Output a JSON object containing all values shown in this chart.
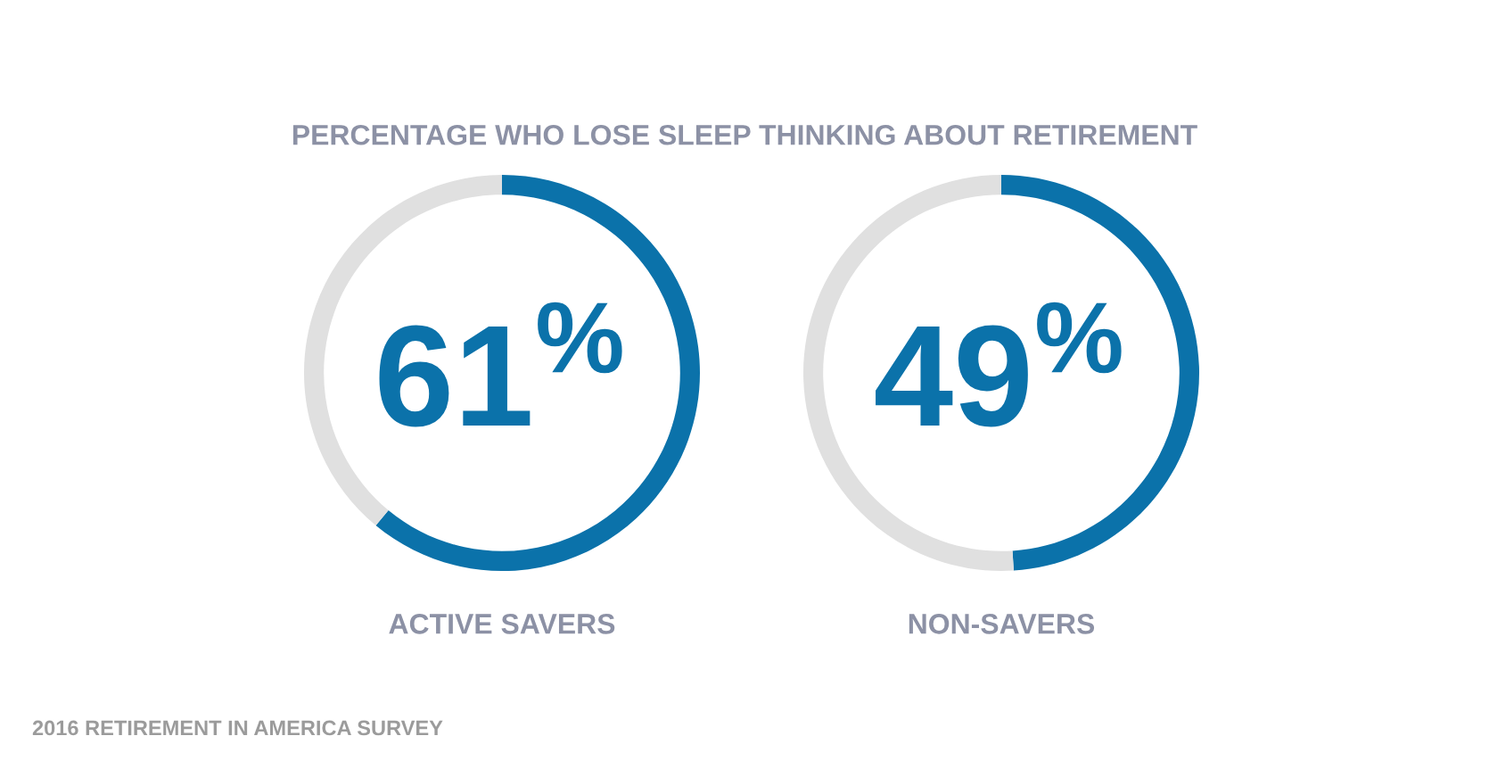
{
  "chart_data": [
    {
      "type": "donut",
      "title": "PERCENTAGE WHO LOSE SLEEP THINKING ABOUT RETIREMENT",
      "xlabel": "ACTIVE SAVERS",
      "categories": [
        null,
        null
      ],
      "values": [
        61,
        39
      ],
      "colors": [
        "#0b72aa",
        "#e0e0e0"
      ],
      "value_labels": [
        "61$^{%}$",
        null
      ],
      "annotations": [
        "2016 RETIREMENT IN AMERICA SURVEY"
      ]
    },
    {
      "type": "donut",
      "xlabel": "NON-SAVERS",
      "categories": [
        null,
        null
      ],
      "values": [
        49,
        51
      ],
      "colors": [
        "#0b72aa",
        "#e0e0e0"
      ],
      "value_labels": [
        "49$^{%}$",
        null
      ]
    }
  ]
}
